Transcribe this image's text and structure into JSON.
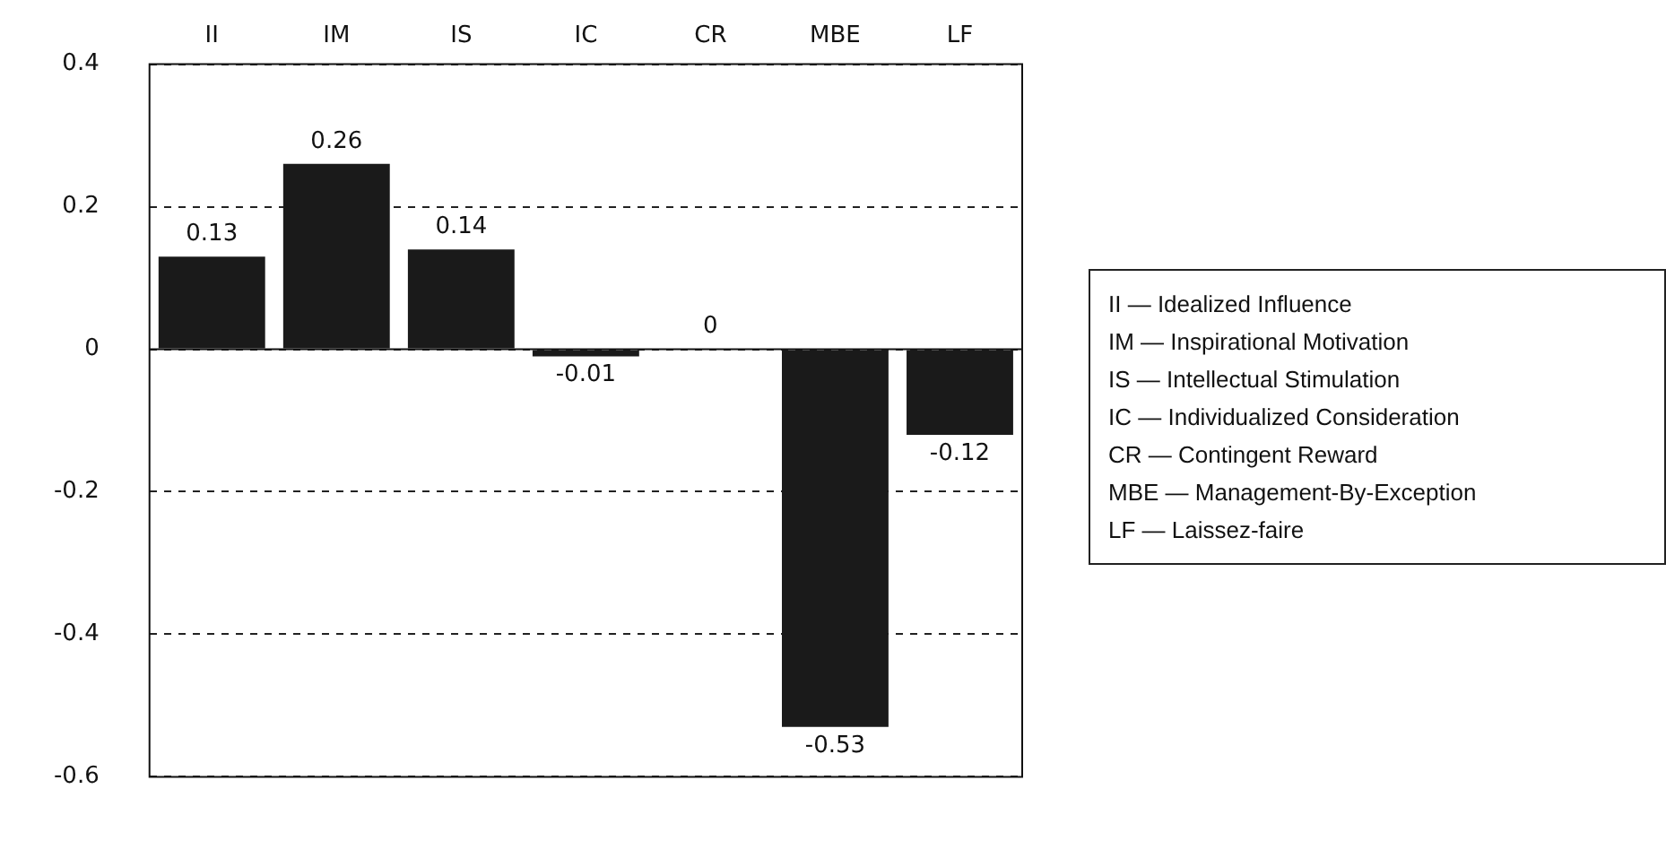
{
  "chart_data": {
    "type": "bar",
    "categories": [
      "II",
      "IM",
      "IS",
      "IC",
      "CR",
      "MBE",
      "LF"
    ],
    "values": [
      0.13,
      0.26,
      0.14,
      -0.01,
      0,
      -0.53,
      -0.12
    ],
    "color": "#1a1a1a",
    "ylim": [
      -0.6,
      0.4
    ],
    "yticks": [
      -0.6,
      -0.4,
      -0.2,
      0,
      0.2,
      0.4
    ],
    "grid": "y",
    "data_labels": true,
    "annotations": [
      "II — Idealized Influence",
      "IM — Inspirational Motivation",
      "IS — Intellectual Stimulation",
      "IC — Individualized Consideration",
      "CR — Contingent Reward",
      "MBE — Management-By-Exception",
      "LF — Laissez-faire"
    ]
  }
}
